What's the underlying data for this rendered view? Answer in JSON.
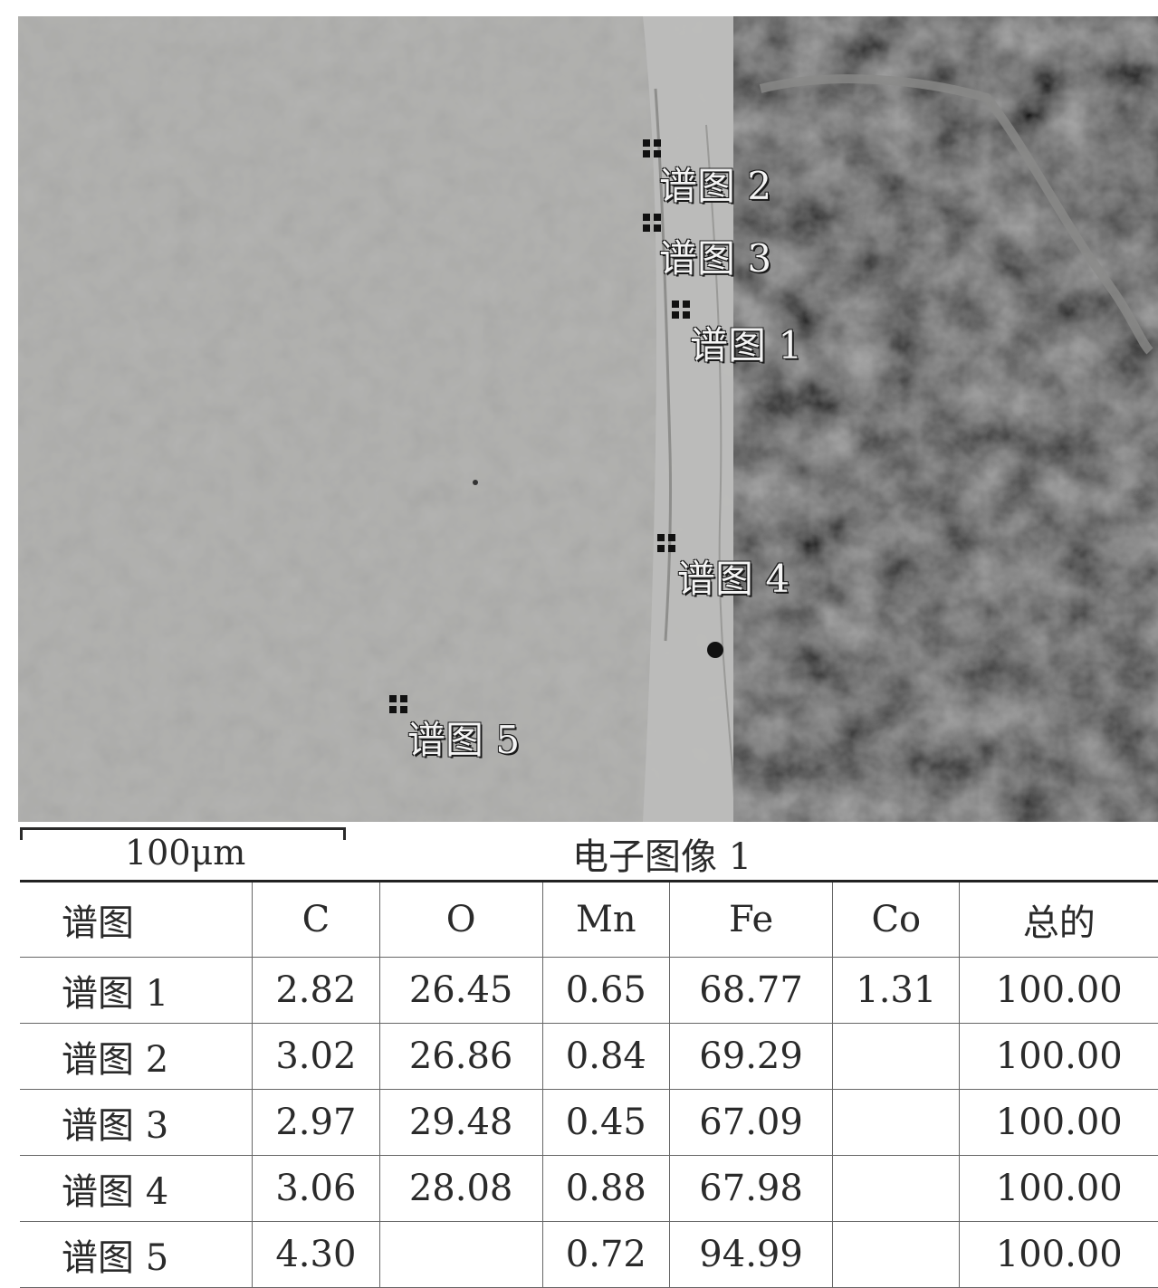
{
  "image": {
    "spot_labels": [
      {
        "id": "1",
        "text": "谱图 1"
      },
      {
        "id": "2",
        "text": "谱图 2"
      },
      {
        "id": "3",
        "text": "谱图 3"
      },
      {
        "id": "4",
        "text": "谱图 4"
      },
      {
        "id": "5",
        "text": "谱图 5"
      }
    ],
    "scale_label": "100μm",
    "caption": "电子图像 1"
  },
  "table": {
    "headers": [
      "谱图",
      "C",
      "O",
      "Mn",
      "Fe",
      "Co",
      "总的"
    ],
    "rows": [
      [
        "谱图 1",
        "2.82",
        "26.45",
        "0.65",
        "68.77",
        "1.31",
        "100.00"
      ],
      [
        "谱图 2",
        "3.02",
        "26.86",
        "0.84",
        "69.29",
        "",
        "100.00"
      ],
      [
        "谱图 3",
        "2.97",
        "29.48",
        "0.45",
        "67.09",
        "",
        "100.00"
      ],
      [
        "谱图 4",
        "3.06",
        "28.08",
        "0.88",
        "67.98",
        "",
        "100.00"
      ],
      [
        "谱图 5",
        "4.30",
        "",
        "0.72",
        "94.99",
        "",
        "100.00"
      ]
    ]
  }
}
